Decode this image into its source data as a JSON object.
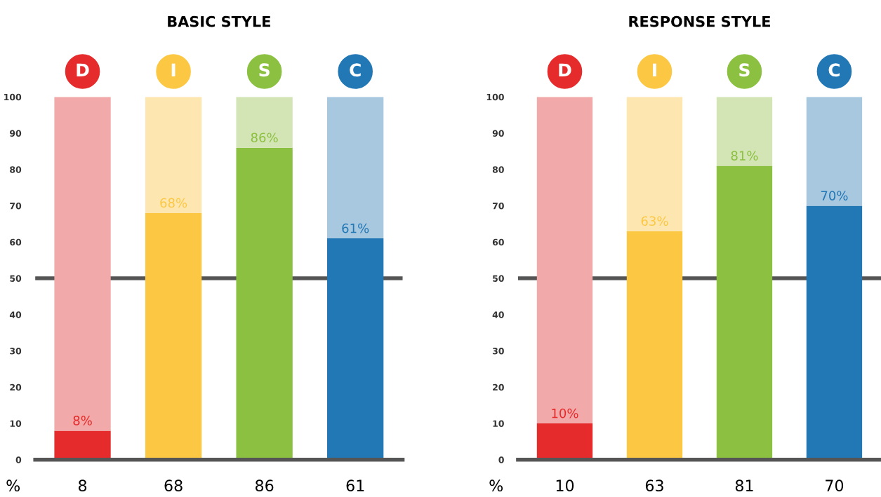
{
  "chart_data": [
    {
      "type": "bar",
      "title": "BASIC STYLE",
      "categories": [
        "D",
        "I",
        "S",
        "C"
      ],
      "stacked": true,
      "series": [
        {
          "colors": [
            "#e52b2b",
            "#fcc843",
            "#8bc040",
            "#2277b5"
          ],
          "values": [
            8,
            68,
            86,
            61
          ],
          "value_labels": [
            "8%",
            "68%",
            "86%",
            "61%"
          ]
        },
        {
          "colors": [
            "#f2a9a9",
            "#fde6b0",
            "#d3e4b5",
            "#a8c8e0"
          ],
          "values": [
            92,
            32,
            14,
            39
          ]
        }
      ],
      "ylim": [
        0,
        100
      ],
      "yticks": [
        0,
        10,
        20,
        30,
        40,
        50,
        60,
        70,
        80,
        90,
        100
      ],
      "ref_lines": [
        {
          "axis": "y",
          "value": 50,
          "color": "#555555"
        }
      ],
      "annotations": [
        "%",
        "8",
        "68",
        "86",
        "61"
      ],
      "grid": false
    },
    {
      "type": "bar",
      "title": "RESPONSE STYLE",
      "categories": [
        "D",
        "I",
        "S",
        "C"
      ],
      "stacked": true,
      "series": [
        {
          "colors": [
            "#e52b2b",
            "#fcc843",
            "#8bc040",
            "#2277b5"
          ],
          "values": [
            10,
            63,
            81,
            70
          ],
          "value_labels": [
            "10%",
            "63%",
            "81%",
            "70%"
          ]
        },
        {
          "colors": [
            "#f2a9a9",
            "#fde6b0",
            "#d3e4b5",
            "#a8c8e0"
          ],
          "values": [
            90,
            37,
            19,
            30
          ]
        }
      ],
      "ylim": [
        0,
        100
      ],
      "yticks": [
        0,
        10,
        20,
        30,
        40,
        50,
        60,
        70,
        80,
        90,
        100
      ],
      "ref_lines": [
        {
          "axis": "y",
          "value": 50,
          "color": "#555555"
        }
      ],
      "annotations": [
        "%",
        "10",
        "63",
        "81",
        "70"
      ],
      "grid": false
    }
  ]
}
